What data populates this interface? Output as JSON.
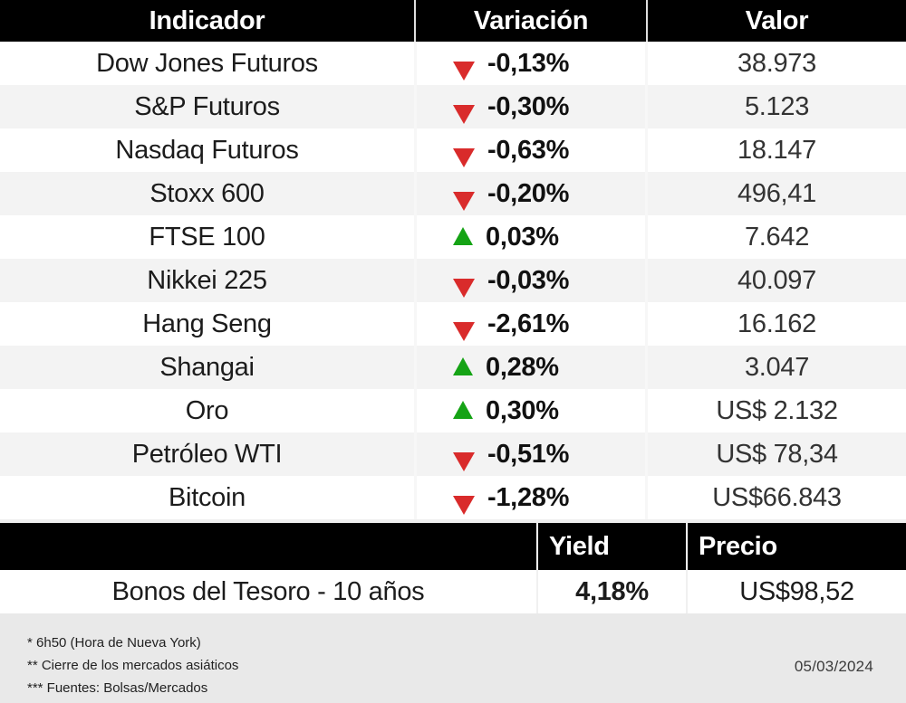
{
  "colors": {
    "up": "#15a315",
    "down": "#d92b2b",
    "header_bg": "#000000",
    "alt_row_bg": "#f3f3f3",
    "footer_bg": "#e9e9e9"
  },
  "chart_data": [
    {
      "type": "table",
      "columns": [
        "Indicador",
        "Variación",
        "Valor"
      ],
      "rows": [
        {
          "indicator": "Dow Jones Futuros",
          "direction": "down",
          "variation": "-0,13%",
          "value": "38.973"
        },
        {
          "indicator": "S&P Futuros",
          "direction": "down",
          "variation": "-0,30%",
          "value": "5.123"
        },
        {
          "indicator": "Nasdaq Futuros",
          "direction": "down",
          "variation": "-0,63%",
          "value": "18.147"
        },
        {
          "indicator": "Stoxx 600",
          "direction": "down",
          "variation": "-0,20%",
          "value": "496,41"
        },
        {
          "indicator": "FTSE 100",
          "direction": "up",
          "variation": "0,03%",
          "value": "7.642"
        },
        {
          "indicator": "Nikkei 225",
          "direction": "down",
          "variation": "-0,03%",
          "value": "40.097"
        },
        {
          "indicator": "Hang Seng",
          "direction": "down",
          "variation": "-2,61%",
          "value": "16.162"
        },
        {
          "indicator": "Shangai",
          "direction": "up",
          "variation": "0,28%",
          "value": "3.047"
        },
        {
          "indicator": "Oro",
          "direction": "up",
          "variation": "0,30%",
          "value": "US$ 2.132"
        },
        {
          "indicator": "Petróleo WTI",
          "direction": "down",
          "variation": "-0,51%",
          "value": "US$ 78,34"
        },
        {
          "indicator": "Bitcoin",
          "direction": "down",
          "variation": "-1,28%",
          "value": "US$66.843"
        }
      ]
    },
    {
      "type": "table",
      "columns": [
        "",
        "Yield",
        "Precio"
      ],
      "rows": [
        {
          "label": "Bonos del Tesoro - 10 años",
          "yield": "4,18%",
          "price": "US$98,52"
        }
      ]
    }
  ],
  "footer": {
    "notes": [
      "* 6h50 (Hora de Nueva York)",
      "** Cierre de los mercados asiáticos",
      "*** Fuentes: Bolsas/Mercados"
    ],
    "date": "05/03/2024"
  }
}
